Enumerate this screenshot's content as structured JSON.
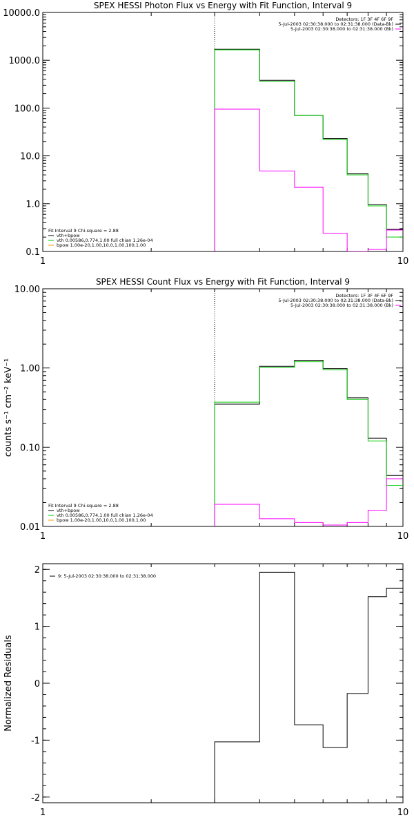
{
  "colors": {
    "data": "#000000",
    "model_sum": "#ff00ff",
    "model_vth": "#00cc00",
    "model_bpow": "#ff9900",
    "marker": "#000000"
  },
  "chart_data": [
    {
      "type": "line",
      "title": "SPEX HESSI Photon Flux vs Energy with Fit Function, Interval 9",
      "xscale": "log",
      "yscale": "log",
      "xlim": [
        1,
        10
      ],
      "ylim": [
        0.1,
        10000
      ],
      "xticks": [
        "1",
        "10"
      ],
      "yticks": [
        {
          "v": 0.1,
          "label": "0.1"
        },
        {
          "v": 1,
          "label": "1.0"
        },
        {
          "v": 10,
          "label": "10.0"
        },
        {
          "v": 100,
          "label": "100.0"
        },
        {
          "v": 1000,
          "label": "1000.0"
        },
        {
          "v": 10000,
          "label": "10000.0"
        }
      ],
      "marker_x": 3.0,
      "edges": [
        3,
        4,
        5,
        6,
        7,
        8,
        9,
        10
      ],
      "series": [
        {
          "key": "data",
          "values": [
            1700,
            380,
            70,
            23,
            4.2,
            0.95,
            0.29
          ]
        },
        {
          "key": "model_vth",
          "values": [
            1650,
            360,
            70,
            22,
            4.0,
            0.9,
            0.2
          ]
        },
        {
          "key": "model_sum",
          "values": [
            95,
            4.8,
            2.2,
            0.24,
            0.1,
            0.11,
            0.28
          ]
        }
      ],
      "legend_tr": [
        {
          "text": "Detectors: 1F 3F 4F 6F 9F"
        },
        {
          "text": "5-Jul-2003 02:30:38.000 to 02:31:38.000 (Data-Bk)",
          "key": "data"
        },
        {
          "text": "5-Jul-2003 02:30:38.000 to 02:31:38.000 (Bk)",
          "key": "model_sum"
        }
      ],
      "legend_bl": [
        {
          "text": "Fit Interval  9    Chi-square = 2.88"
        },
        {
          "text": "vth+bpow",
          "key": "data"
        },
        {
          "text": "vth 0.00586,0.774,1.00  full chian 1.26e-04",
          "key": "model_vth"
        },
        {
          "text": "bpow 1.00e-20,1.00,10.0,1.00,100,1.00",
          "key": "model_bpow"
        }
      ]
    },
    {
      "type": "line",
      "title": "SPEX HESSI Count Flux vs Energy with Fit Function, Interval 9",
      "ylabel": "counts s⁻¹ cm⁻² keV⁻¹",
      "xscale": "log",
      "yscale": "log",
      "xlim": [
        1,
        10
      ],
      "ylim": [
        0.01,
        10
      ],
      "xticks": [
        "1",
        "10"
      ],
      "yticks": [
        {
          "v": 0.01,
          "label": "0.01"
        },
        {
          "v": 0.1,
          "label": "0.10"
        },
        {
          "v": 1,
          "label": "1.00"
        },
        {
          "v": 10,
          "label": "10.00"
        }
      ],
      "marker_x": 3.0,
      "edges": [
        3,
        4,
        5,
        6,
        7,
        8,
        9,
        10
      ],
      "series": [
        {
          "key": "data",
          "values": [
            0.35,
            1.05,
            1.25,
            0.98,
            0.42,
            0.13,
            0.044
          ]
        },
        {
          "key": "model_vth",
          "values": [
            0.37,
            1.02,
            1.2,
            0.95,
            0.4,
            0.12,
            0.033
          ]
        },
        {
          "key": "model_sum",
          "values": [
            0.019,
            0.0125,
            0.0112,
            0.0104,
            0.0112,
            0.016,
            0.04
          ]
        }
      ],
      "legend_tr": [
        {
          "text": "Detectors: 1F 3F 4F 6F 9F"
        },
        {
          "text": "5-Jul-2003 02:30:38.000 to 02:31:38.000 (Data-Bk)",
          "key": "data"
        },
        {
          "text": "5-Jul-2003 02:30:38.000 to 02:31:38.000 (Bk)",
          "key": "model_sum"
        }
      ],
      "legend_bl": [
        {
          "text": "Fit Interval  9    Chi-square = 2.88"
        },
        {
          "text": "vth+bpow",
          "key": "data"
        },
        {
          "text": "vth 0.00586,0.774,1.00  full chian 1.26e-04",
          "key": "model_vth"
        },
        {
          "text": "bpow 1.00e-20,1.00,10.0,1.00,100,1.00",
          "key": "model_bpow"
        }
      ]
    },
    {
      "type": "line",
      "title": "",
      "ylabel": "Normalized Residuals",
      "xscale": "log",
      "yscale": "linear",
      "xlim": [
        1,
        10
      ],
      "ylim": [
        -2.1,
        2.1
      ],
      "xticks": [
        "1",
        "10"
      ],
      "yticks": [
        {
          "v": -2,
          "label": "-2"
        },
        {
          "v": -1,
          "label": "-1"
        },
        {
          "v": 0,
          "label": "0"
        },
        {
          "v": 1,
          "label": "1"
        },
        {
          "v": 2,
          "label": "2"
        }
      ],
      "edges": [
        3,
        4,
        5,
        6,
        7,
        8,
        9,
        10
      ],
      "series": [
        {
          "key": "data",
          "values": [
            -1.03,
            1.95,
            -0.73,
            -1.13,
            -0.18,
            1.52,
            1.67
          ]
        }
      ],
      "legend_tl": [
        {
          "text": "9:  5-Jul-2003 02:30:38.000 to 02:31:38.000",
          "key": "data"
        }
      ]
    }
  ]
}
